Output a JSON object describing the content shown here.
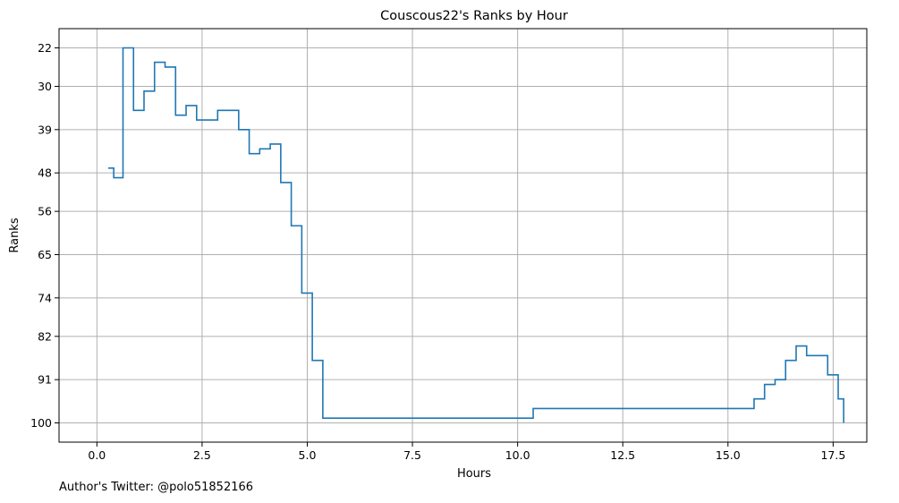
{
  "chart_data": {
    "type": "line",
    "step": "post",
    "title": "Couscous22's Ranks by Hour",
    "xlabel": "Hours",
    "ylabel": "Ranks",
    "xlim": [
      -0.9,
      18.3
    ],
    "ylim": [
      104,
      18
    ],
    "y_inverted": true,
    "grid": true,
    "x_ticks": [
      0.0,
      2.5,
      5.0,
      7.5,
      10.0,
      12.5,
      15.0,
      17.5
    ],
    "x_tick_labels": [
      "0.0",
      "2.5",
      "5.0",
      "7.5",
      "10.0",
      "12.5",
      "15.0",
      "17.5"
    ],
    "y_ticks": [
      22,
      30,
      39,
      48,
      56,
      65,
      74,
      82,
      91,
      100
    ],
    "y_tick_labels": [
      "22",
      "30",
      "39",
      "48",
      "56",
      "65",
      "74",
      "82",
      "91",
      "100"
    ],
    "series": [
      {
        "color": "#1f77b4",
        "x": [
          0.27,
          0.4,
          0.62,
          0.87,
          1.12,
          1.37,
          1.62,
          1.87,
          2.12,
          2.37,
          2.62,
          2.87,
          3.12,
          3.37,
          3.62,
          3.87,
          4.12,
          4.37,
          4.62,
          4.87,
          5.12,
          5.37,
          10.37,
          15.37,
          15.62,
          15.87,
          16.12,
          16.37,
          16.62,
          16.87,
          17.12,
          17.37,
          17.62,
          17.75
        ],
        "y": [
          47,
          49,
          22,
          35,
          31,
          25,
          26,
          36,
          34,
          37,
          37,
          35,
          35,
          39,
          44,
          43,
          42,
          50,
          59,
          73,
          87,
          99,
          97,
          97,
          95,
          92,
          91,
          87,
          84,
          86,
          86,
          90,
          95,
          100
        ]
      }
    ]
  },
  "footer": {
    "note": "Author's Twitter: @polo51852166"
  }
}
